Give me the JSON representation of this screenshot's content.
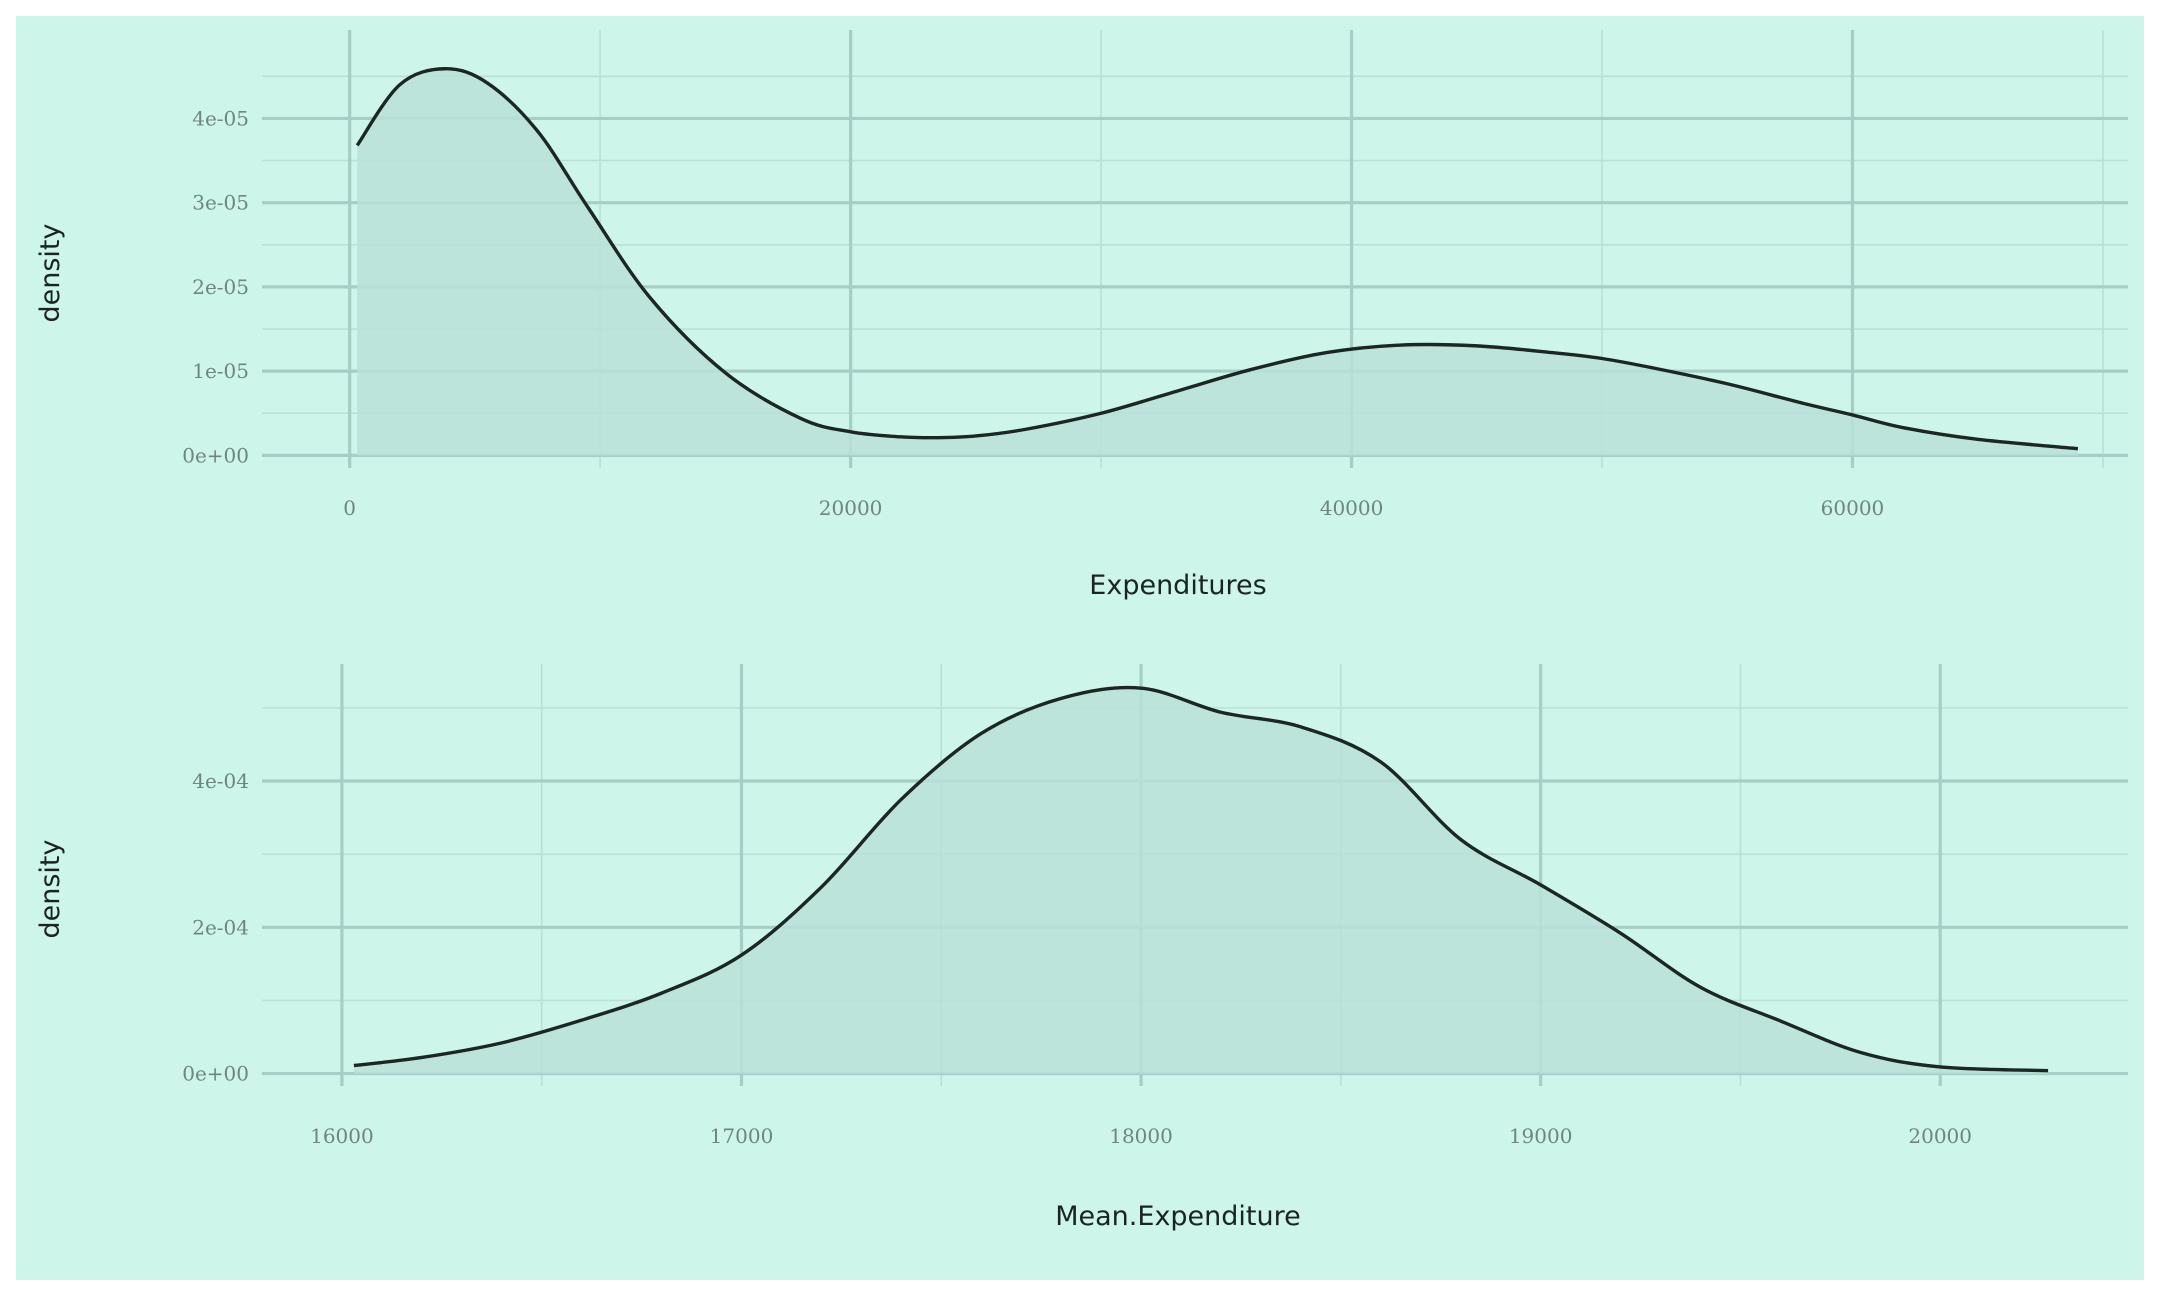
{
  "colors": {
    "background": "#cdf5ea",
    "grid_major": "#a5cfc6",
    "grid_minor": "#b8e0d6",
    "fill": "#b8e0d8",
    "line": "#1c2623",
    "tick_text": "#6f8580"
  },
  "chart_data": [
    {
      "type": "area",
      "title": "",
      "xlabel": "Expenditures",
      "ylabel": "density",
      "xlim": [
        -3500,
        71000
      ],
      "ylim": [
        -1.5e-06,
        5.05e-05
      ],
      "x_ticks": [
        0,
        20000,
        40000,
        60000
      ],
      "x_tick_labels": [
        "0",
        "20000",
        "40000",
        "60000"
      ],
      "y_ticks": [
        0,
        1e-05,
        2e-05,
        3e-05,
        4e-05
      ],
      "y_tick_labels": [
        "0e+00",
        "1e-05",
        "2e-05",
        "3e-05",
        "4e-05"
      ],
      "grid": true,
      "series": [
        {
          "x": [
            300,
            2000,
            3800,
            5500,
            7500,
            9500,
            12000,
            15000,
            18000,
            20000,
            22000,
            23500,
            25000,
            27000,
            30000,
            33000,
            36000,
            39000,
            42000,
            45000,
            48000,
            50000,
            52000,
            55000,
            58000,
            60000,
            62000,
            65000,
            69000
          ],
          "y": [
            3.68e-05,
            4.4e-05,
            4.59e-05,
            4.42e-05,
            3.85e-05,
            2.95e-05,
            1.87e-05,
            9.8e-06,
            4.4e-06,
            2.8e-06,
            2.2e-06,
            2.1e-06,
            2.3e-06,
            3.1e-06,
            5e-06,
            7.6e-06,
            1.02e-05,
            1.22e-05,
            1.31e-05,
            1.3e-05,
            1.22e-05,
            1.15e-05,
            1.04e-05,
            8.5e-06,
            6.2e-06,
            4.8e-06,
            3.3e-06,
            1.9e-06,
            8e-07
          ]
        }
      ]
    },
    {
      "type": "area",
      "title": "",
      "xlabel": "Mean.Expenditure",
      "ylabel": "density",
      "xlim": [
        15800,
        20470
      ],
      "ylim": [
        -1.7e-05,
        0.00056
      ],
      "x_ticks": [
        16000,
        17000,
        18000,
        19000,
        20000
      ],
      "x_tick_labels": [
        "16000",
        "17000",
        "18000",
        "19000",
        "20000"
      ],
      "y_ticks": [
        0,
        0.0002,
        0.0004
      ],
      "y_tick_labels": [
        "0e+00",
        "2e-04",
        "4e-04"
      ],
      "grid": true,
      "series": [
        {
          "x": [
            16030,
            16200,
            16400,
            16600,
            16800,
            17000,
            17200,
            17400,
            17600,
            17800,
            18000,
            18200,
            18400,
            18600,
            18800,
            19000,
            19200,
            19400,
            19600,
            19800,
            20000,
            20270
          ],
          "y": [
            1.1e-05,
            2.2e-05,
            4.2e-05,
            7.3e-05,
            0.00011,
            0.000162,
            0.000255,
            0.000375,
            0.000465,
            0.000513,
            0.000527,
            0.000494,
            0.000474,
            0.000426,
            0.00032,
            0.000258,
            0.000192,
            0.000118,
            7.2e-05,
            2.9e-05,
            9e-06,
            4e-06
          ]
        }
      ]
    }
  ]
}
